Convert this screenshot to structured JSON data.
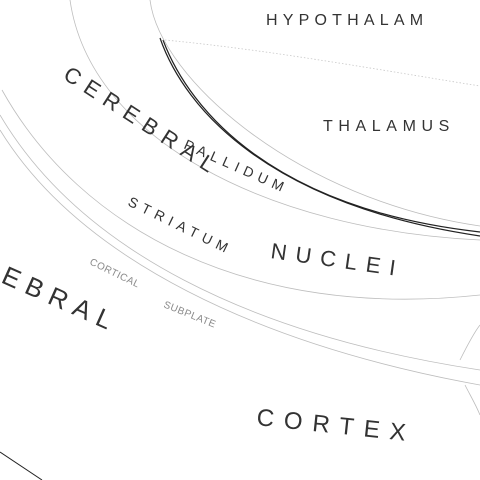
{
  "labels": {
    "hypothalamus": "HYPOTHALAM",
    "thalamus": "THALAMUS",
    "cerebral_upper": "CEREBRAL",
    "pallidum": "PALLIDUM",
    "striatum": "STRIATUM",
    "nuclei": "NUCLEI",
    "cerebral_lower": "EBRAL",
    "cortical": "CORTICAL",
    "subplate": "SUBPLATE",
    "cortex": "CORTEX"
  },
  "colors": {
    "text": "#333333",
    "text_light": "#8a8a8a",
    "line": "#bdbdbd",
    "line_dark": "#222222"
  }
}
